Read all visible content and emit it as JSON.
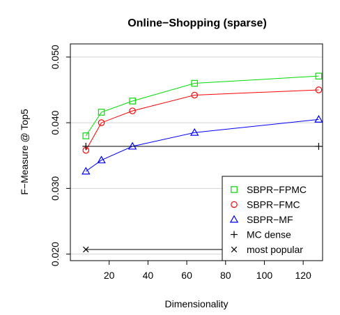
{
  "chart_data": {
    "type": "line",
    "title": "Online−Shopping (sparse)",
    "xlabel": "Dimensionality",
    "ylabel": "F−Measure @ Top5",
    "xlim": [
      0,
      130
    ],
    "ylim": [
      0.019,
      0.052
    ],
    "x_ticks": [
      20,
      40,
      60,
      80,
      100,
      120
    ],
    "x_tick_labels": [
      "20",
      "40",
      "60",
      "80",
      "100",
      "120"
    ],
    "y_ticks": [
      0.02,
      0.03,
      0.04,
      0.05
    ],
    "y_tick_labels": [
      "0.020",
      "0.030",
      "0.040",
      "0.050"
    ],
    "grid": "horizontal",
    "legend_position": "bottom-right",
    "series": [
      {
        "name": "SBPR−FPMC",
        "color": "#00dd00",
        "marker": "square",
        "x": [
          8,
          16,
          32,
          64,
          128
        ],
        "y": [
          0.038,
          0.0416,
          0.0433,
          0.046,
          0.0471
        ]
      },
      {
        "name": "SBPR−FMC",
        "color": "#ff0000",
        "marker": "circle",
        "x": [
          8,
          16,
          32,
          64,
          128
        ],
        "y": [
          0.0358,
          0.04,
          0.0418,
          0.0442,
          0.045
        ]
      },
      {
        "name": "SBPR−MF",
        "color": "#0000ff",
        "marker": "triangle",
        "x": [
          8,
          16,
          32,
          64,
          128
        ],
        "y": [
          0.0326,
          0.0343,
          0.0364,
          0.0385,
          0.0405
        ]
      },
      {
        "name": "MC dense",
        "color": "#000000",
        "marker": "plus",
        "x": [
          8,
          128
        ],
        "y": [
          0.0364,
          0.0364
        ]
      },
      {
        "name": "most popular",
        "color": "#000000",
        "marker": "cross",
        "x": [
          8,
          128
        ],
        "y": [
          0.0207,
          0.0207
        ]
      }
    ]
  }
}
